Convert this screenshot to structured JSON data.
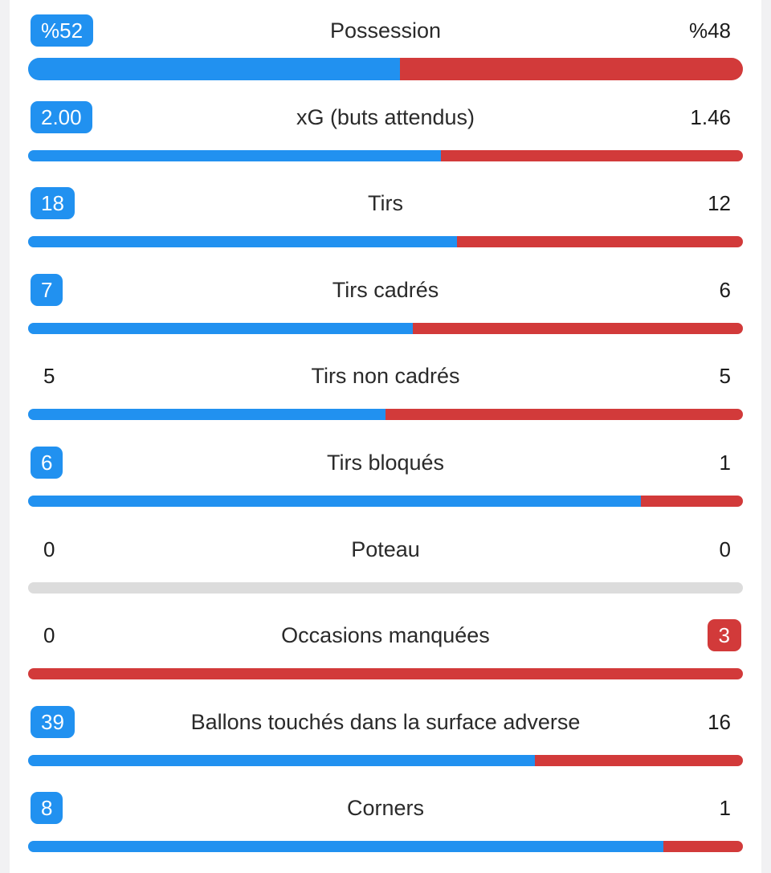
{
  "colors": {
    "home": "#2191f0",
    "away": "#d23a3a",
    "neutral": "#dcdcdc"
  },
  "stats": [
    {
      "label": "Possession",
      "home": "%52",
      "away": "%48",
      "home_share": 52,
      "leader": "home"
    },
    {
      "label": "xG (buts attendus)",
      "home": "2.00",
      "away": "1.46",
      "home_share": 57.8,
      "leader": "home"
    },
    {
      "label": "Tirs",
      "home": "18",
      "away": "12",
      "home_share": 60,
      "leader": "home"
    },
    {
      "label": "Tirs cadrés",
      "home": "7",
      "away": "6",
      "home_share": 53.8,
      "leader": "home"
    },
    {
      "label": "Tirs non cadrés",
      "home": "5",
      "away": "5",
      "home_share": 50,
      "leader": "none"
    },
    {
      "label": "Tirs bloqués",
      "home": "6",
      "away": "1",
      "home_share": 85.7,
      "leader": "home"
    },
    {
      "label": "Poteau",
      "home": "0",
      "away": "0",
      "home_share": null,
      "leader": "none"
    },
    {
      "label": "Occasions manquées",
      "home": "0",
      "away": "3",
      "home_share": 0,
      "leader": "away"
    },
    {
      "label": "Ballons touchés dans la surface adverse",
      "home": "39",
      "away": "16",
      "home_share": 70.9,
      "leader": "home"
    },
    {
      "label": "Corners",
      "home": "8",
      "away": "1",
      "home_share": 88.9,
      "leader": "home"
    }
  ]
}
